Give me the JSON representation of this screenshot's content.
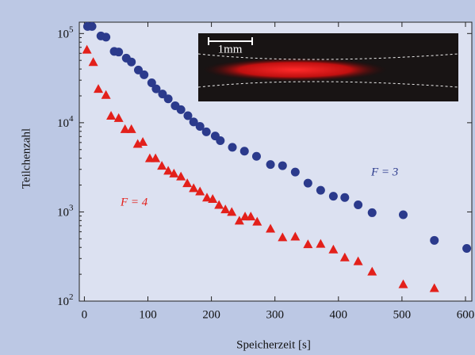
{
  "chart_data": {
    "type": "scatter",
    "log_y": true,
    "x_label": "Speicherzeit [s]",
    "y_label": "Teilchenzahl",
    "xlim": [
      -8,
      610
    ],
    "ylim": [
      100,
      134000
    ],
    "xticks": [
      0,
      100,
      200,
      300,
      400,
      500,
      600
    ],
    "yticks": [
      {
        "value": 100,
        "label": "10",
        "exponent": "2"
      },
      {
        "value": 1000,
        "label": "10",
        "exponent": "3"
      },
      {
        "value": 10000,
        "label": "10",
        "exponent": "4"
      },
      {
        "value": 100000,
        "label": "10",
        "exponent": "5"
      }
    ],
    "inset_scale_label": "1mm",
    "series": [
      {
        "name": "F = 3",
        "color": "#2b3a8c",
        "marker": "circle",
        "x": [
          5,
          12,
          26,
          34,
          47,
          54,
          66,
          74,
          85,
          94,
          106,
          113,
          123,
          132,
          143,
          152,
          163,
          172,
          182,
          192,
          206,
          214,
          233,
          252,
          271,
          293,
          312,
          332,
          352,
          372,
          392,
          410,
          431,
          453,
          502,
          551,
          602
        ],
        "values": [
          120000,
          120000,
          94000,
          91000,
          63000,
          62000,
          53000,
          48000,
          39000,
          34500,
          28000,
          24000,
          21000,
          18500,
          15500,
          14000,
          12000,
          10200,
          9100,
          7900,
          7100,
          6300,
          5300,
          4800,
          4200,
          3400,
          3300,
          2800,
          2100,
          1750,
          1500,
          1450,
          1200,
          980,
          930,
          480,
          390
        ]
      },
      {
        "name": "F = 4",
        "color": "#e3201b",
        "marker": "triangle",
        "x": [
          4,
          14,
          22,
          34,
          42,
          54,
          64,
          74,
          84,
          92,
          103,
          112,
          122,
          132,
          141,
          152,
          162,
          172,
          182,
          193,
          202,
          212,
          222,
          232,
          244,
          253,
          262,
          272,
          293,
          312,
          332,
          352,
          372,
          392,
          410,
          431,
          453,
          502,
          551
        ],
        "values": [
          66000,
          48000,
          24000,
          20500,
          12000,
          11300,
          8500,
          8500,
          5800,
          6100,
          4000,
          4000,
          3300,
          2900,
          2700,
          2500,
          2100,
          1850,
          1700,
          1450,
          1400,
          1200,
          1070,
          1000,
          800,
          890,
          890,
          780,
          650,
          520,
          530,
          435,
          440,
          380,
          310,
          280,
          215,
          155,
          140
        ]
      }
    ]
  }
}
